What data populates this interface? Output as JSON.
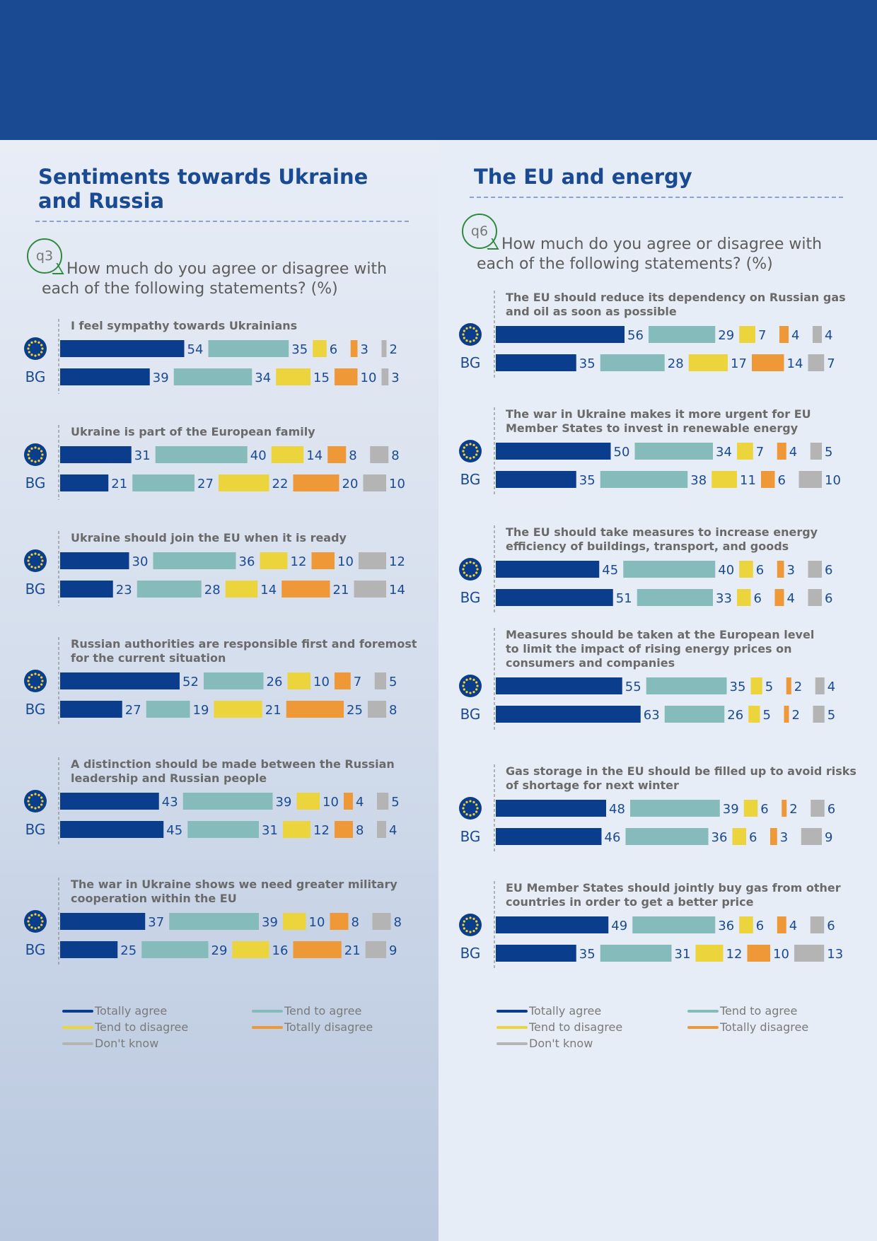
{
  "colors": {
    "Totally agree": "#0a3e8c",
    "Tend to agree": "#86bbbb",
    "Tend to disagree": "#ecd43c",
    "Totally disagree": "#ee9838",
    "Don't know": "#b4b4b4",
    "label": "#1a4a91",
    "statement": "#6a6a6a"
  },
  "left": {
    "title_line1": "Sentiments towards Ukraine",
    "title_line2": "and Russia",
    "question_id": "q3",
    "question_line1": "How much do you agree or disagree with",
    "question_line2": "each of the following statements? (%)"
  },
  "right": {
    "title_line1": "The EU and energy",
    "question_id": "q6",
    "question_line1": "How much do you agree or disagree with",
    "question_line2": "each of the following statements? (%)"
  },
  "legend": {
    "totally_agree": "Totally agree",
    "tend_to_agree": "Tend to agree",
    "tend_to_disagree": "Tend to disagree",
    "totally_disagree": "Totally disagree",
    "dont_know": "Don't know"
  },
  "chart_data": [
    {
      "type": "bar",
      "orientation": "horizontal",
      "stacked": true,
      "title": "Sentiments towards Ukraine and Russia",
      "series": [
        "Totally agree",
        "Tend to agree",
        "Tend to disagree",
        "Totally disagree",
        "Don't know"
      ],
      "row_labels": [
        "EU",
        "BG"
      ],
      "items": [
        {
          "statement": [
            "I feel sympathy towards Ukrainians"
          ],
          "EU": [
            54,
            35,
            6,
            3,
            2
          ],
          "BG": [
            39,
            34,
            15,
            10,
            3
          ]
        },
        {
          "statement": [
            "Ukraine is part of the European family"
          ],
          "EU": [
            31,
            40,
            14,
            8,
            8
          ],
          "BG": [
            21,
            27,
            22,
            20,
            10
          ]
        },
        {
          "statement": [
            "Ukraine should join the EU when it is ready"
          ],
          "EU": [
            30,
            36,
            12,
            10,
            12
          ],
          "BG": [
            23,
            28,
            14,
            21,
            14
          ]
        },
        {
          "statement": [
            "Russian authorities are responsible first and foremost",
            "for the current situation"
          ],
          "EU": [
            52,
            26,
            10,
            7,
            5
          ],
          "BG": [
            27,
            19,
            21,
            25,
            8
          ]
        },
        {
          "statement": [
            "A distinction should be made between the Russian",
            "leadership and Russian people"
          ],
          "EU": [
            43,
            39,
            10,
            4,
            5
          ],
          "BG": [
            45,
            31,
            12,
            8,
            4
          ]
        },
        {
          "statement": [
            "The war in Ukraine shows we need greater military",
            "cooperation within the EU"
          ],
          "EU": [
            37,
            39,
            10,
            8,
            8
          ],
          "BG": [
            25,
            29,
            16,
            21,
            9
          ]
        }
      ]
    },
    {
      "type": "bar",
      "orientation": "horizontal",
      "stacked": true,
      "title": "The EU and energy",
      "series": [
        "Totally agree",
        "Tend to agree",
        "Tend to disagree",
        "Totally disagree",
        "Don't know"
      ],
      "row_labels": [
        "EU",
        "BG"
      ],
      "items": [
        {
          "statement": [
            "The EU should reduce its dependency on Russian gas",
            "and oil as soon as possible"
          ],
          "EU": [
            56,
            29,
            7,
            4,
            4
          ],
          "BG": [
            35,
            28,
            17,
            14,
            7
          ]
        },
        {
          "statement": [
            "The war in Ukraine makes it more urgent for EU",
            "Member States to invest in renewable energy"
          ],
          "EU": [
            50,
            34,
            7,
            4,
            5
          ],
          "BG": [
            35,
            38,
            11,
            6,
            10
          ]
        },
        {
          "statement": [
            "The EU should take measures to increase energy",
            "efficiency of buildings, transport, and goods"
          ],
          "EU": [
            45,
            40,
            6,
            3,
            6
          ],
          "BG": [
            51,
            33,
            6,
            4,
            6
          ]
        },
        {
          "statement": [
            "Measures should be taken at the European level",
            "to limit the impact of rising energy prices on",
            "consumers and companies"
          ],
          "EU": [
            55,
            35,
            5,
            2,
            4
          ],
          "BG": [
            63,
            26,
            5,
            2,
            5
          ]
        },
        {
          "statement": [
            "Gas storage in the EU should be filled up to avoid risks",
            "of shortage for next winter"
          ],
          "EU": [
            48,
            39,
            6,
            2,
            6
          ],
          "BG": [
            46,
            36,
            6,
            3,
            9
          ]
        },
        {
          "statement": [
            "EU Member States should jointly buy gas from other",
            "countries in order to get a better price"
          ],
          "EU": [
            49,
            36,
            6,
            4,
            6
          ],
          "BG": [
            35,
            31,
            12,
            10,
            13
          ]
        }
      ]
    }
  ]
}
